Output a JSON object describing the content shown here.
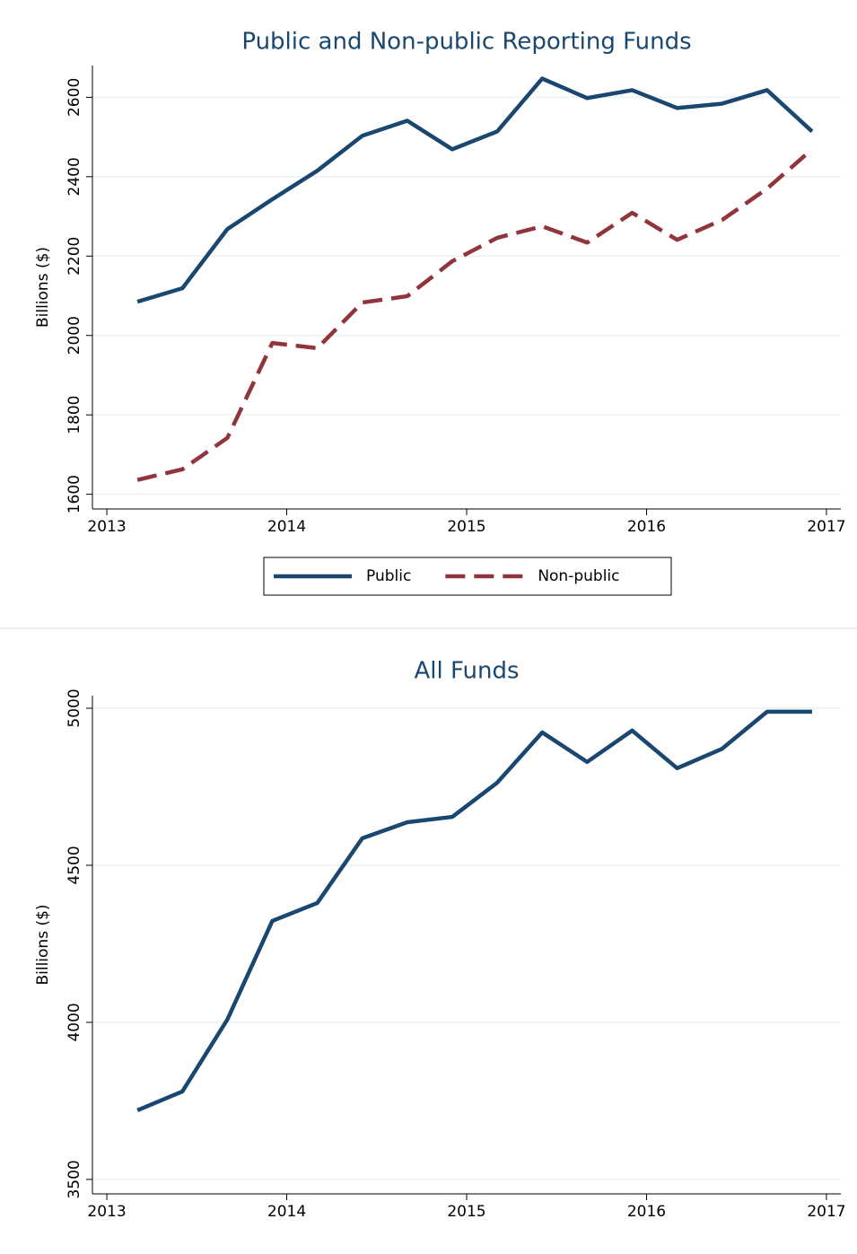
{
  "chart_data": [
    {
      "type": "line",
      "title": "Public and Non-public Reporting Funds",
      "y_label": "Billions ($)",
      "x": [
        2013.17,
        2013.42,
        2013.67,
        2013.92,
        2014.17,
        2014.42,
        2014.67,
        2014.92,
        2015.17,
        2015.42,
        2015.67,
        2015.92,
        2016.17,
        2016.42,
        2016.67,
        2016.92
      ],
      "series": [
        {
          "name": "Public",
          "color": "#1a476f",
          "dash": "solid",
          "values": [
            2085,
            2119,
            2268,
            2343,
            2415,
            2503,
            2541,
            2469,
            2514,
            2647,
            2598,
            2618,
            2573,
            2584,
            2618,
            2514
          ]
        },
        {
          "name": "Non-public",
          "color": "#90353b",
          "dash": "dashed",
          "values": [
            1636,
            1663,
            1742,
            1981,
            1968,
            2083,
            2099,
            2187,
            2246,
            2275,
            2234,
            2309,
            2241,
            2291,
            2370,
            2469
          ]
        }
      ],
      "xlim": [
        2012.92,
        2017.08
      ],
      "xticks": [
        2013,
        2014,
        2015,
        2016,
        2017
      ],
      "ylim": [
        1563,
        2680
      ],
      "yticks": [
        1600,
        1800,
        2000,
        2200,
        2400,
        2600
      ],
      "grid": true,
      "legend": "bottom"
    },
    {
      "type": "line",
      "title": "All Funds",
      "y_label": "Billions ($)",
      "x": [
        2013.17,
        2013.42,
        2013.67,
        2013.92,
        2014.17,
        2014.42,
        2014.67,
        2014.92,
        2015.17,
        2015.42,
        2015.67,
        2015.92,
        2016.17,
        2016.42,
        2016.67,
        2016.92
      ],
      "series": [
        {
          "color": "#1a476f",
          "dash": "solid",
          "values": [
            3720,
            3780,
            4009,
            4323,
            4380,
            4586,
            4637,
            4654,
            4763,
            4923,
            4829,
            4929,
            4809,
            4871,
            4989,
            4989
          ]
        }
      ],
      "xlim": [
        2012.92,
        2017.08
      ],
      "xticks": [
        2013,
        2014,
        2015,
        2016,
        2017
      ],
      "ylim": [
        3454,
        5040
      ],
      "yticks": [
        3500,
        4000,
        4500,
        5000
      ],
      "grid": true
    }
  ]
}
